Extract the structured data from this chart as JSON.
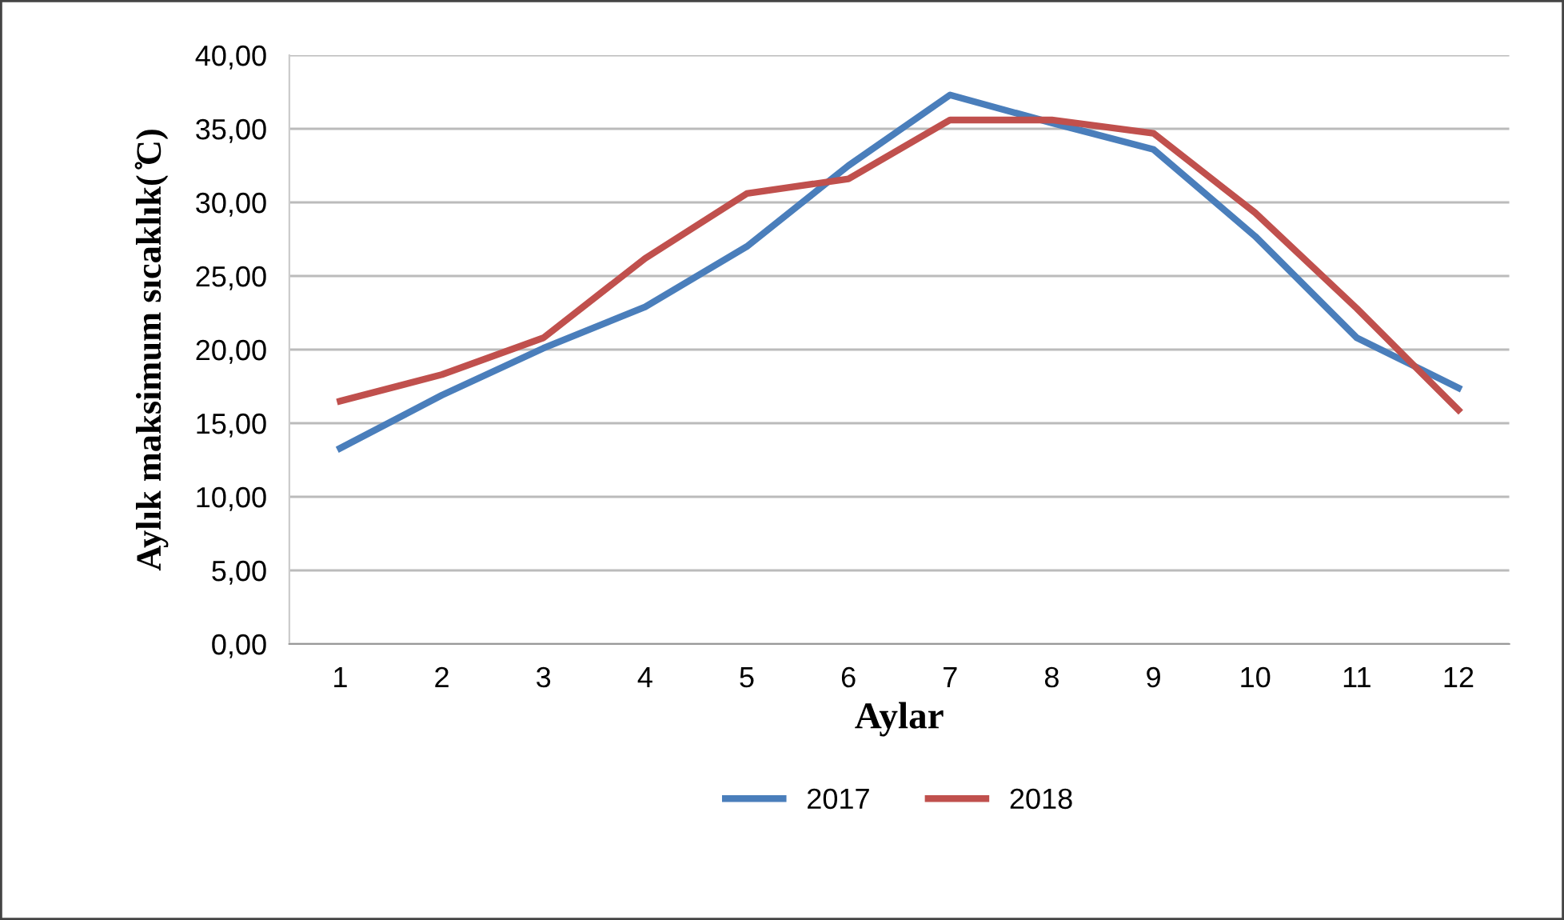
{
  "chart_data": {
    "type": "line",
    "xlabel": "Aylar",
    "ylabel": "Aylık maksimum sıcaklık( ̊C)",
    "categories": [
      "1",
      "2",
      "3",
      "4",
      "5",
      "6",
      "7",
      "8",
      "9",
      "10",
      "11",
      "12"
    ],
    "series": [
      {
        "name": "2017",
        "color": "#4a7ebb",
        "values": [
          13.3,
          16.9,
          20.1,
          22.9,
          27.0,
          32.5,
          37.3,
          35.4,
          33.6,
          27.7,
          20.8,
          17.4
        ]
      },
      {
        "name": "2018",
        "color": "#c0504d",
        "values": [
          16.5,
          18.3,
          20.8,
          26.2,
          30.6,
          31.6,
          35.6,
          35.6,
          34.7,
          29.3,
          22.8,
          15.9
        ]
      }
    ],
    "ylim": [
      0,
      40
    ],
    "yticks": [
      {
        "value": 0,
        "label": "0,00"
      },
      {
        "value": 5,
        "label": "5,00"
      },
      {
        "value": 10,
        "label": "10,00"
      },
      {
        "value": 15,
        "label": "15,00"
      },
      {
        "value": 20,
        "label": "20,00"
      },
      {
        "value": 25,
        "label": "25,00"
      },
      {
        "value": 30,
        "label": "30,00"
      },
      {
        "value": 35,
        "label": "35,00"
      },
      {
        "value": 40,
        "label": "40,00"
      }
    ],
    "grid": "y",
    "legend": "bottom",
    "marker": "none",
    "line_style": "solid"
  }
}
